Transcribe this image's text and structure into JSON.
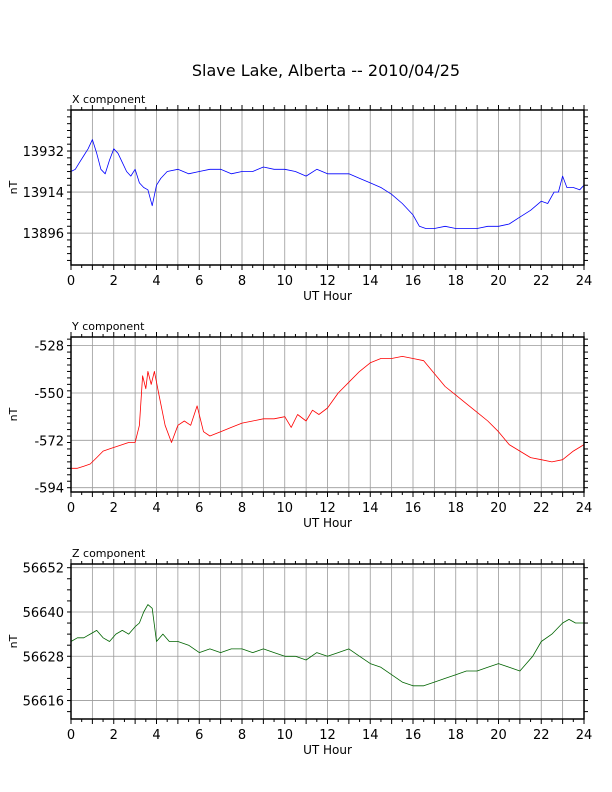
{
  "title": "Slave Lake, Alberta -- 2010/04/25",
  "chart_data": [
    {
      "type": "line",
      "panel_label": "X component",
      "ylabel": "nT",
      "xlabel": "UT Hour",
      "xlim": [
        0,
        24
      ],
      "ylim": [
        13882,
        13950
      ],
      "x_ticks": [
        0,
        2,
        4,
        6,
        8,
        10,
        12,
        14,
        16,
        18,
        20,
        22,
        24
      ],
      "y_ticks": [
        13932,
        13914,
        13896
      ],
      "grid": true,
      "color": "#0000ff",
      "series": [
        {
          "x": [
            0,
            0.2,
            0.4,
            0.6,
            0.8,
            1.0,
            1.2,
            1.4,
            1.6,
            1.8,
            2.0,
            2.2,
            2.4,
            2.6,
            2.8,
            3.0,
            3.2,
            3.4,
            3.6,
            3.8,
            4.0,
            4.2,
            4.5,
            5.0,
            5.5,
            6.0,
            6.5,
            7.0,
            7.5,
            8.0,
            8.5,
            9.0,
            9.5,
            10.0,
            10.5,
            11.0,
            11.5,
            12.0,
            12.5,
            13.0,
            13.5,
            14.0,
            14.5,
            15.0,
            15.5,
            16.0,
            16.3,
            16.6,
            17.0,
            17.5,
            18.0,
            18.5,
            19.0,
            19.5,
            20.0,
            20.5,
            21.0,
            21.5,
            22.0,
            22.3,
            22.6,
            22.8,
            23.0,
            23.2,
            23.5,
            23.8,
            24.0
          ],
          "y": [
            13923,
            13924,
            13927,
            13930,
            13933,
            13937,
            13931,
            13924,
            13922,
            13928,
            13933,
            13931,
            13927,
            13923,
            13921,
            13924,
            13918,
            13916,
            13915,
            13908,
            13917,
            13920,
            13923,
            13924,
            13922,
            13923,
            13924,
            13924,
            13922,
            13923,
            13923,
            13925,
            13924,
            13924,
            13923,
            13921,
            13924,
            13922,
            13922,
            13922,
            13920,
            13918,
            13916,
            13913,
            13909,
            13904,
            13899,
            13898,
            13898,
            13899,
            13898,
            13898,
            13898,
            13899,
            13899,
            13900,
            13903,
            13906,
            13910,
            13909,
            13914,
            13914,
            13921,
            13916,
            13916,
            13915,
            13917
          ]
        }
      ]
    },
    {
      "type": "line",
      "panel_label": "Y component",
      "ylabel": "nT",
      "xlabel": "UT Hour",
      "xlim": [
        0,
        24
      ],
      "ylim": [
        -596,
        -524
      ],
      "x_ticks": [
        0,
        2,
        4,
        6,
        8,
        10,
        12,
        14,
        16,
        18,
        20,
        22,
        24
      ],
      "y_ticks": [
        -528,
        -550,
        -572,
        -594
      ],
      "grid": true,
      "color": "#ff0000",
      "series": [
        {
          "x": [
            0,
            0.3,
            0.6,
            0.9,
            1.2,
            1.5,
            1.8,
            2.1,
            2.4,
            2.7,
            3.0,
            3.2,
            3.35,
            3.5,
            3.6,
            3.75,
            3.9,
            4.1,
            4.4,
            4.7,
            5.0,
            5.3,
            5.6,
            5.9,
            6.2,
            6.5,
            7.0,
            7.5,
            8.0,
            8.5,
            9.0,
            9.5,
            10.0,
            10.3,
            10.6,
            11.0,
            11.3,
            11.6,
            12.0,
            12.5,
            13.0,
            13.5,
            14.0,
            14.5,
            15.0,
            15.5,
            16.0,
            16.5,
            17.0,
            17.5,
            18.0,
            18.5,
            19.0,
            19.5,
            20.0,
            20.5,
            21.0,
            21.5,
            22.0,
            22.5,
            23.0,
            23.5,
            24.0
          ],
          "y": [
            -585,
            -585,
            -584,
            -583,
            -580,
            -577,
            -576,
            -575,
            -574,
            -573,
            -573,
            -565,
            -542,
            -548,
            -540,
            -546,
            -540,
            -550,
            -565,
            -573,
            -565,
            -563,
            -565,
            -556,
            -568,
            -570,
            -568,
            -566,
            -564,
            -563,
            -562,
            -562,
            -561,
            -566,
            -560,
            -563,
            -558,
            -560,
            -557,
            -550,
            -545,
            -540,
            -536,
            -534,
            -534,
            -533,
            -534,
            -535,
            -541,
            -547,
            -551,
            -555,
            -559,
            -563,
            -568,
            -574,
            -577,
            -580,
            -581,
            -582,
            -581,
            -577,
            -574
          ]
        }
      ]
    },
    {
      "type": "line",
      "panel_label": "Z component",
      "ylabel": "nT",
      "xlabel": "UT Hour",
      "xlim": [
        0,
        24
      ],
      "ylim": [
        56611,
        56653
      ],
      "x_ticks": [
        0,
        2,
        4,
        6,
        8,
        10,
        12,
        14,
        16,
        18,
        20,
        22,
        24
      ],
      "y_ticks": [
        56652,
        56640,
        56628,
        56616
      ],
      "grid": true,
      "color": "#006400",
      "series": [
        {
          "x": [
            0,
            0.3,
            0.6,
            0.9,
            1.2,
            1.5,
            1.8,
            2.1,
            2.4,
            2.7,
            3.0,
            3.2,
            3.4,
            3.6,
            3.8,
            4.0,
            4.3,
            4.6,
            5.0,
            5.5,
            6.0,
            6.5,
            7.0,
            7.5,
            8.0,
            8.5,
            9.0,
            9.5,
            10.0,
            10.5,
            11.0,
            11.5,
            12.0,
            12.5,
            13.0,
            13.5,
            14.0,
            14.5,
            15.0,
            15.5,
            16.0,
            16.5,
            17.0,
            17.5,
            18.0,
            18.5,
            19.0,
            19.5,
            20.0,
            20.5,
            21.0,
            21.3,
            21.6,
            22.0,
            22.5,
            23.0,
            23.3,
            23.6,
            24.0
          ],
          "y": [
            56632,
            56633,
            56633,
            56634,
            56635,
            56633,
            56632,
            56634,
            56635,
            56634,
            56636,
            56637,
            56640,
            56642,
            56641,
            56632,
            56634,
            56632,
            56632,
            56631,
            56629,
            56630,
            56629,
            56630,
            56630,
            56629,
            56630,
            56629,
            56628,
            56628,
            56627,
            56629,
            56628,
            56629,
            56630,
            56628,
            56626,
            56625,
            56623,
            56621,
            56620,
            56620,
            56621,
            56622,
            56623,
            56624,
            56624,
            56625,
            56626,
            56625,
            56624,
            56626,
            56628,
            56632,
            56634,
            56637,
            56638,
            56637,
            56637
          ]
        }
      ]
    }
  ]
}
